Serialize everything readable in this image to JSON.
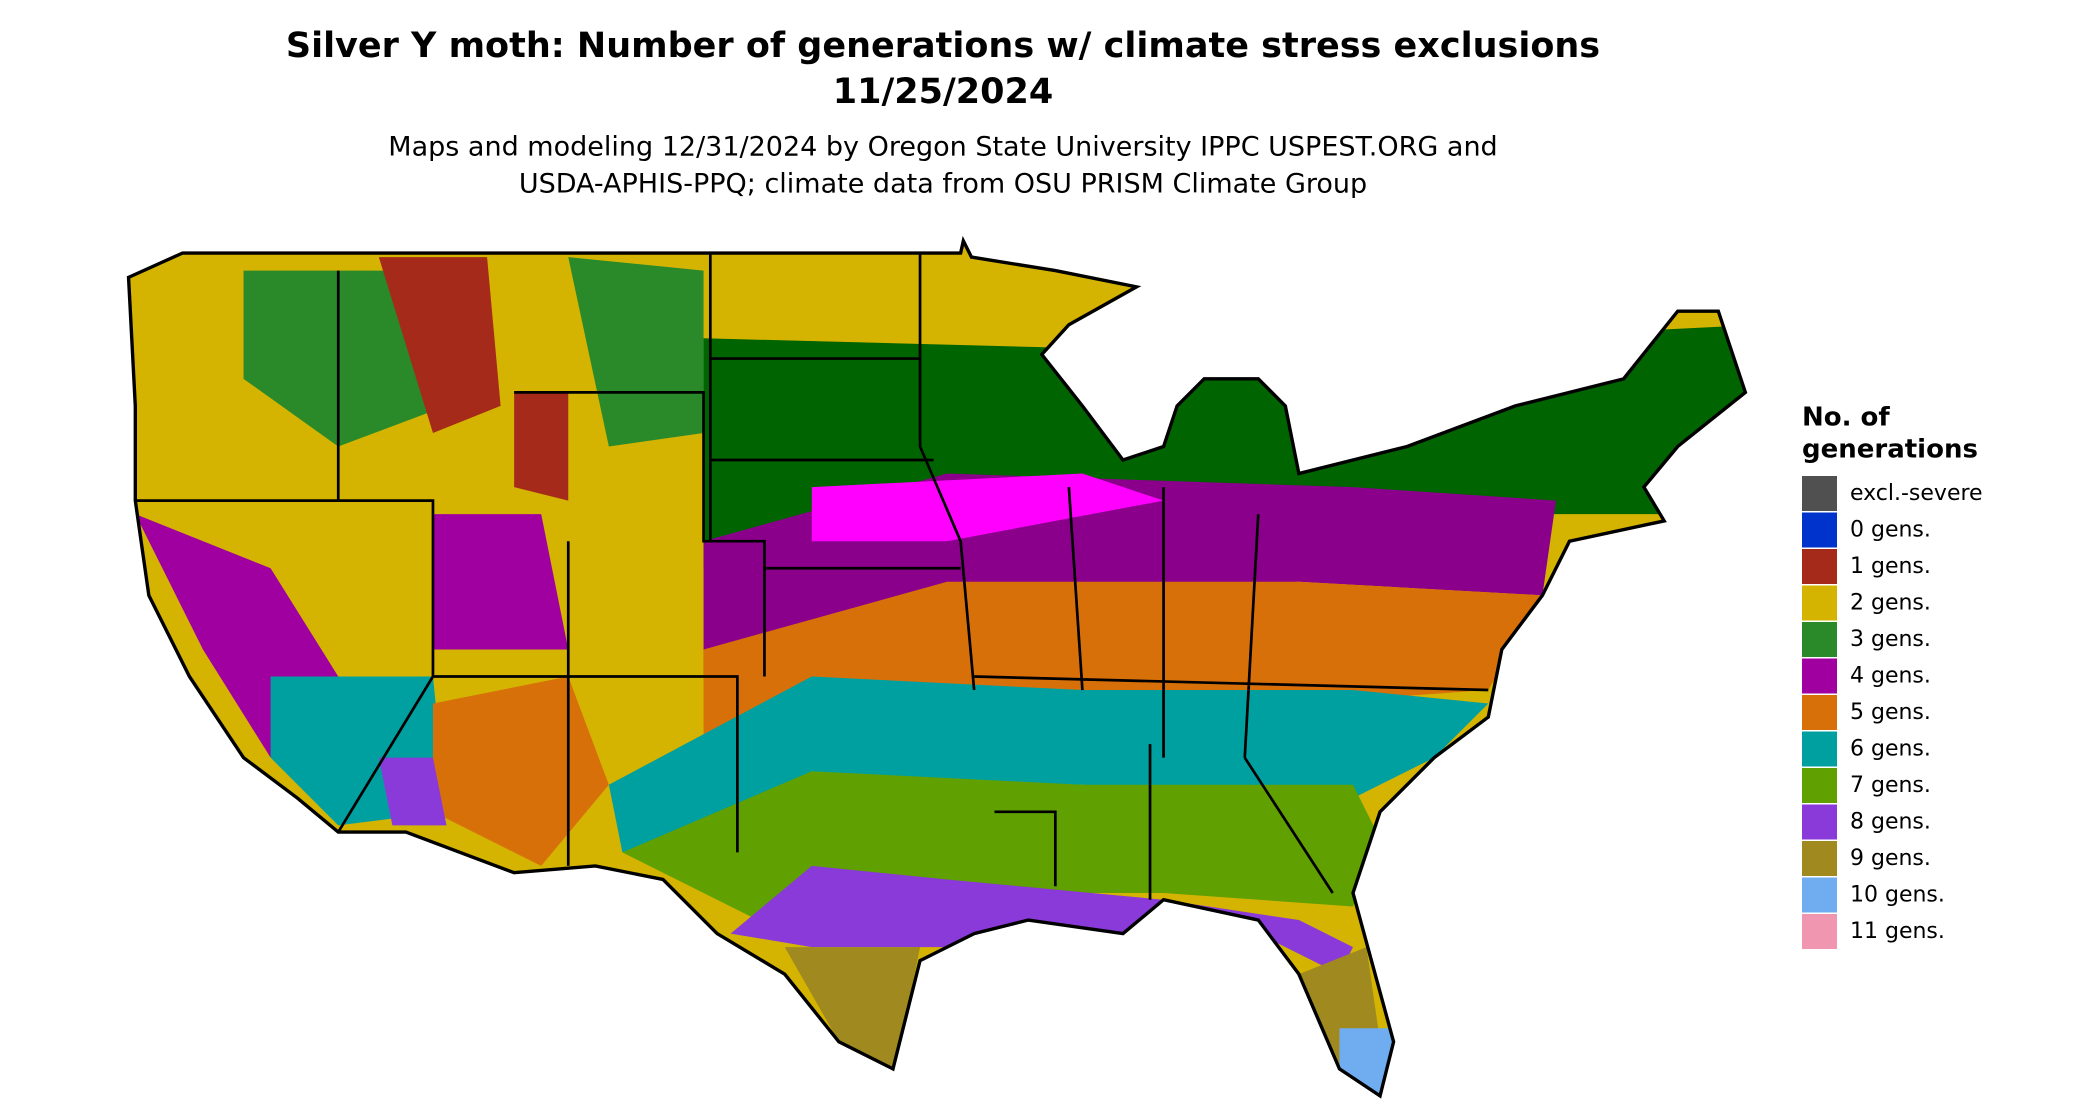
{
  "header": {
    "title": "Silver Y moth: Number of generations w/ climate stress exclusions",
    "date": "11/25/2024",
    "subtitle": [
      "Maps and modeling 12/31/2024 by Oregon State University IPPC USPEST.ORG and",
      "USDA-APHIS-PPQ; climate data from OSU PRISM Climate Group"
    ]
  },
  "legend": {
    "title": [
      "No. of",
      "generations"
    ],
    "items": [
      {
        "label": "excl.-severe",
        "color": "#505050"
      },
      {
        "label": "0 gens.",
        "color": "#0033cc"
      },
      {
        "label": "1 gens.",
        "color": "#a52a1a"
      },
      {
        "label": "2 gens.",
        "color": "#d4b400"
      },
      {
        "label": "3 gens.",
        "color": "#2a8a2a"
      },
      {
        "label": "4 gens.",
        "color": "#a000a0"
      },
      {
        "label": "5 gens.",
        "color": "#d8700a"
      },
      {
        "label": "6 gens.",
        "color": "#00a0a0"
      },
      {
        "label": "7 gens.",
        "color": "#60a000"
      },
      {
        "label": "8 gens.",
        "color": "#8a3ad8"
      },
      {
        "label": "9 gens.",
        "color": "#a08a20"
      },
      {
        "label": "10 gens.",
        "color": "#70acf0"
      },
      {
        "label": "11 gens.",
        "color": "#f096b0"
      }
    ]
  }
}
